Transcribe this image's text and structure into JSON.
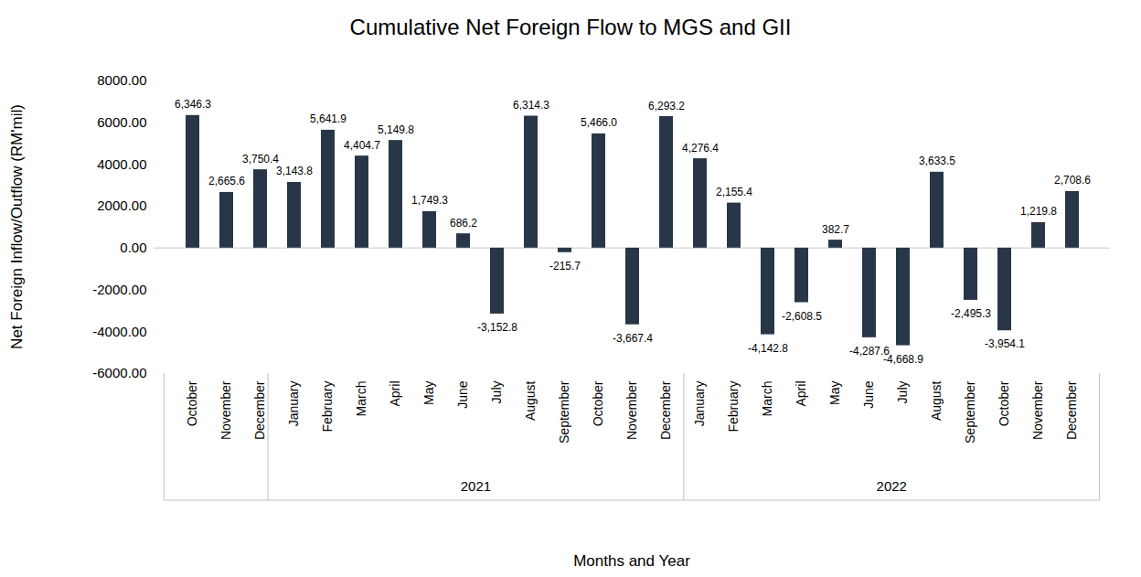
{
  "chart_data": {
    "type": "bar",
    "title": "Cumulative Net Foreign Flow to MGS and GII",
    "x_label": "Months and Year",
    "y_label": "Net Foreign Inflow/Outflow (RM'mil)",
    "categories": [
      "October",
      "November",
      "December",
      "January",
      "February",
      "March",
      "April",
      "May",
      "June",
      "July",
      "August",
      "September",
      "October",
      "November",
      "December",
      "January",
      "February",
      "March",
      "April",
      "May",
      "June",
      "July",
      "August",
      "September",
      "October",
      "November",
      "December"
    ],
    "years": [
      null,
      null,
      null,
      "2021",
      "2021",
      "2021",
      "2021",
      "2021",
      "2021",
      "2021",
      "2021",
      "2021",
      "2021",
      "2021",
      "2021",
      "2022",
      "2022",
      "2022",
      "2022",
      "2022",
      "2022",
      "2022",
      "2022",
      "2022",
      "2022",
      "2022",
      "2022"
    ],
    "values": [
      6346.3,
      2665.6,
      3750.4,
      3143.8,
      5641.9,
      4404.7,
      5149.8,
      1749.3,
      686.2,
      -3152.8,
      6314.3,
      -215.7,
      5466.0,
      -3667.4,
      6293.2,
      4276.4,
      2155.4,
      -4142.8,
      -2608.5,
      382.7,
      -4287.6,
      -4668.9,
      3633.5,
      -2495.3,
      -3954.1,
      1219.8,
      2708.6
    ],
    "value_labels": [
      "6,346.3",
      "2,665.6",
      "3,750.4",
      "3,143.8",
      "5,641.9",
      "4,404.7",
      "5,149.8",
      "1,749.3",
      "686.2",
      "-3,152.8",
      "6,314.3",
      "-215.7",
      "5,466.0",
      "-3,667.4",
      "6,293.2",
      "4,276.4",
      "2,155.4",
      "-4,142.8",
      "-2,608.5",
      "382.7",
      "-4,287.6",
      "-4,668.9",
      "3,633.5",
      "-2,495.3",
      "-3,954.1",
      "1,219.8",
      "2,708.6"
    ],
    "color": "#283747",
    "ylim": [
      -6000,
      8000
    ],
    "yticks": [
      {
        "value": -6000,
        "label": "-6000.00"
      },
      {
        "value": -4000,
        "label": "-4000.00"
      },
      {
        "value": -2000,
        "label": "-2000.00"
      },
      {
        "value": 0,
        "label": "0.00"
      },
      {
        "value": 2000,
        "label": "2000.00"
      },
      {
        "value": 4000,
        "label": "4000.00"
      },
      {
        "value": 6000,
        "label": "6000.00"
      },
      {
        "value": 8000,
        "label": "8000.00"
      }
    ],
    "data_labels": true,
    "grid": false
  }
}
